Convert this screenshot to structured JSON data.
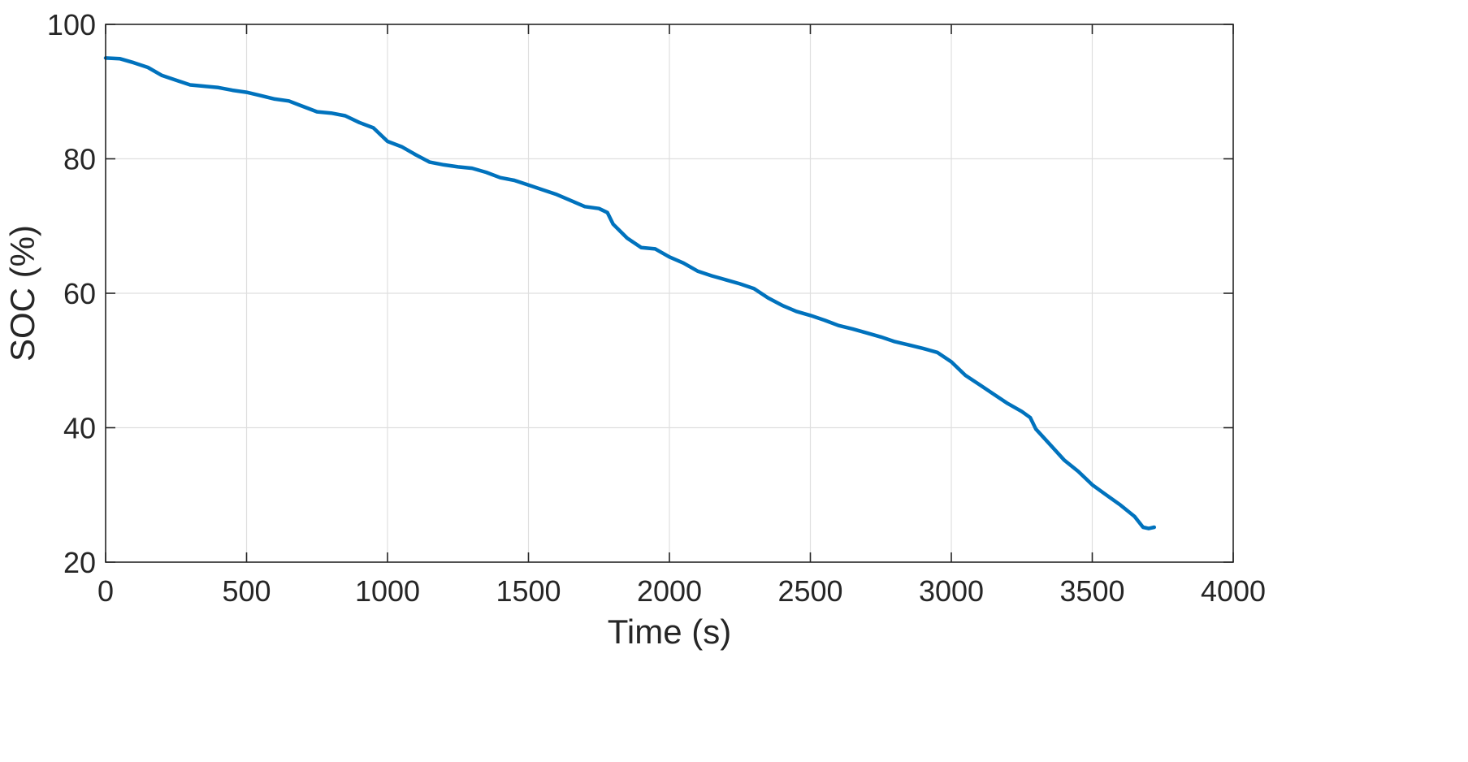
{
  "chart_data": {
    "type": "line",
    "xlabel": "Time (s)",
    "ylabel": "SOC (%)",
    "xlim": [
      0,
      4000
    ],
    "ylim": [
      20,
      100
    ],
    "xticks": [
      0,
      500,
      1000,
      1500,
      2000,
      2500,
      3000,
      3500,
      4000
    ],
    "yticks": [
      20,
      40,
      60,
      80,
      100
    ],
    "grid": true,
    "line_color": "#0072BD",
    "series": [
      {
        "x": [
          0,
          50,
          100,
          150,
          200,
          250,
          300,
          350,
          400,
          450,
          500,
          550,
          600,
          650,
          700,
          750,
          800,
          850,
          900,
          950,
          1000,
          1050,
          1100,
          1150,
          1200,
          1250,
          1300,
          1350,
          1400,
          1450,
          1500,
          1550,
          1600,
          1650,
          1700,
          1750,
          1780,
          1800,
          1850,
          1900,
          1950,
          2000,
          2050,
          2100,
          2150,
          2200,
          2250,
          2300,
          2350,
          2400,
          2450,
          2500,
          2550,
          2600,
          2650,
          2700,
          2750,
          2800,
          2850,
          2900,
          2950,
          3000,
          3050,
          3100,
          3150,
          3200,
          3250,
          3280,
          3300,
          3350,
          3400,
          3450,
          3500,
          3550,
          3600,
          3650,
          3680,
          3700,
          3720
        ],
        "y": [
          95.0,
          94.9,
          94.3,
          93.6,
          92.4,
          91.7,
          91.0,
          90.8,
          90.6,
          90.2,
          89.9,
          89.4,
          88.9,
          88.6,
          87.8,
          87.0,
          86.8,
          86.4,
          85.4,
          84.6,
          82.6,
          81.8,
          80.6,
          79.5,
          79.1,
          78.8,
          78.6,
          78.0,
          77.2,
          76.8,
          76.1,
          75.4,
          74.7,
          73.8,
          72.9,
          72.6,
          72.0,
          70.3,
          68.2,
          66.8,
          66.6,
          65.4,
          64.5,
          63.3,
          62.6,
          62.0,
          61.4,
          60.7,
          59.3,
          58.2,
          57.3,
          56.7,
          56.0,
          55.2,
          54.7,
          54.1,
          53.5,
          52.8,
          52.3,
          51.8,
          51.2,
          49.8,
          47.8,
          46.4,
          45.0,
          43.6,
          42.4,
          41.5,
          39.8,
          37.5,
          35.2,
          33.5,
          31.5,
          30.0,
          28.5,
          26.8,
          25.2,
          25.0,
          25.2
        ]
      }
    ]
  }
}
